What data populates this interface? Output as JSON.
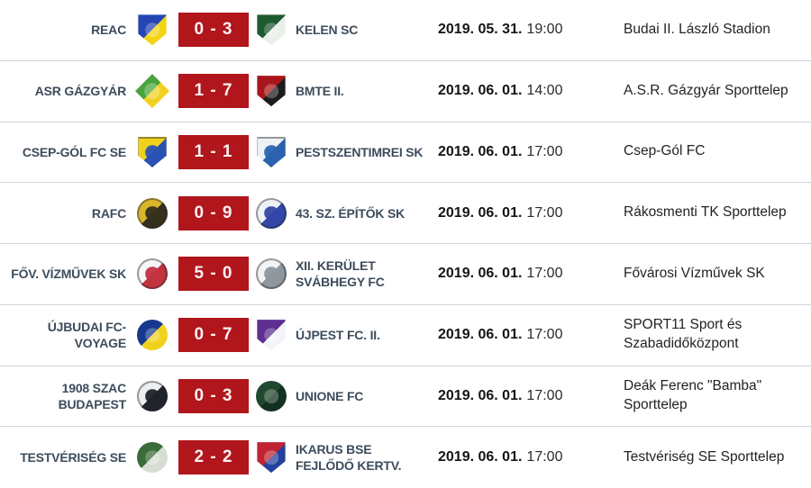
{
  "palette": {
    "accent_red": "#b0161c",
    "score_text": "#fdf0f0",
    "row_divider": "#cdd4db",
    "team_name_color": "#3d4c5c",
    "date_color": "#141414",
    "background": "#ffffff"
  },
  "rows": [
    {
      "home": "REAC",
      "away": "KELEN SC",
      "score": "0 - 3",
      "date": "2019. 05. 31.",
      "time": "19:00",
      "venue": "Budai II. László Stadion",
      "home_logo": {
        "name": "reac-crest",
        "shape": "shield",
        "colors": [
          "#2446b4",
          "#f3d415"
        ]
      },
      "away_logo": {
        "name": "kelen-sc-crest",
        "shape": "shield",
        "colors": [
          "#1d5a30",
          "#e9efe9"
        ]
      }
    },
    {
      "home": "ASR GÁZGYÁR",
      "away": "BMTE II.",
      "score": "1 - 7",
      "date": "2019. 06. 01.",
      "time": "14:00",
      "venue": "A.S.R. Gázgyár Sporttelep",
      "home_logo": {
        "name": "asr-gazgyar-crest",
        "shape": "diamond",
        "colors": [
          "#4aa43c",
          "#f2d020"
        ]
      },
      "away_logo": {
        "name": "bmte-crest",
        "shape": "shield",
        "colors": [
          "#a8161b",
          "#1c1c1c"
        ]
      }
    },
    {
      "home": "CSEP-GÓL FC SE",
      "away": "PESTSZENTIMREI SK",
      "score": "1 - 1",
      "date": "2019. 06. 01.",
      "time": "17:00",
      "venue": "Csep-Gól FC",
      "home_logo": {
        "name": "csep-gol-crest",
        "shape": "shield",
        "colors": [
          "#f0d21c",
          "#2a52b5"
        ]
      },
      "away_logo": {
        "name": "pestszentimrei-crest",
        "shape": "shield",
        "colors": [
          "#eef2f6",
          "#2a62b0"
        ]
      }
    },
    {
      "home": "RAFC",
      "away": "43. SZ. ÉPÍTŐK SK",
      "score": "0 - 9",
      "date": "2019. 06. 01.",
      "time": "17:00",
      "venue": "Rákosmenti TK Sporttelep",
      "home_logo": {
        "name": "rafc-crest",
        "shape": "circle",
        "colors": [
          "#d9b62c",
          "#35301c"
        ]
      },
      "away_logo": {
        "name": "epitok-sk-crest",
        "shape": "circle",
        "colors": [
          "#eef1f7",
          "#3247a8"
        ]
      }
    },
    {
      "home": "FŐV. VÍZMŰVEK SK",
      "away": "XII. KERÜLET SVÁBHEGY FC",
      "score": "5 - 0",
      "date": "2019. 06. 01.",
      "time": "17:00",
      "venue": "Fővárosi Vízművek SK",
      "home_logo": {
        "name": "vizmuvek-crest",
        "shape": "circle",
        "colors": [
          "#f4f6f9",
          "#c23340"
        ]
      },
      "away_logo": {
        "name": "svabhegy-crest",
        "shape": "circle",
        "colors": [
          "#f2f3f4",
          "#8e979e"
        ]
      }
    },
    {
      "home": "ÚJBUDAI FC-VOYAGE",
      "away": "ÚJPEST FC. II.",
      "score": "0 - 7",
      "date": "2019. 06. 01.",
      "time": "17:00",
      "venue": "SPORT11 Sport és Szabadidőközpont",
      "home_logo": {
        "name": "ujbudai-voyage-crest",
        "shape": "circle",
        "colors": [
          "#16398f",
          "#f0d21c"
        ]
      },
      "away_logo": {
        "name": "ujpest-crest",
        "shape": "shield",
        "colors": [
          "#5e2e90",
          "#f5f3f8"
        ]
      }
    },
    {
      "home": "1908 SZAC BUDAPEST",
      "away": "UNIONE FC",
      "score": "0 - 3",
      "date": "2019. 06. 01.",
      "time": "17:00",
      "venue": "Deák Ferenc \"Bamba\" Sporttelep",
      "home_logo": {
        "name": "szac-budapest-crest",
        "shape": "circle",
        "colors": [
          "#edeff1",
          "#20242b"
        ]
      },
      "away_logo": {
        "name": "unione-fc-crest",
        "shape": "circle",
        "colors": [
          "#20482e",
          "#133120"
        ]
      }
    },
    {
      "home": "TESTVÉRISÉG SE",
      "away": "IKARUS BSE FEJLŐDŐ KERTV.",
      "score": "2 - 2",
      "date": "2019. 06. 01.",
      "time": "17:00",
      "venue": "Testvériség SE Sporttelep",
      "home_logo": {
        "name": "testveriseg-crest",
        "shape": "circle",
        "colors": [
          "#3c6b3a",
          "#d7ddd2"
        ]
      },
      "away_logo": {
        "name": "ikarus-bse-crest",
        "shape": "shield",
        "colors": [
          "#bf2430",
          "#24409c"
        ]
      }
    }
  ]
}
